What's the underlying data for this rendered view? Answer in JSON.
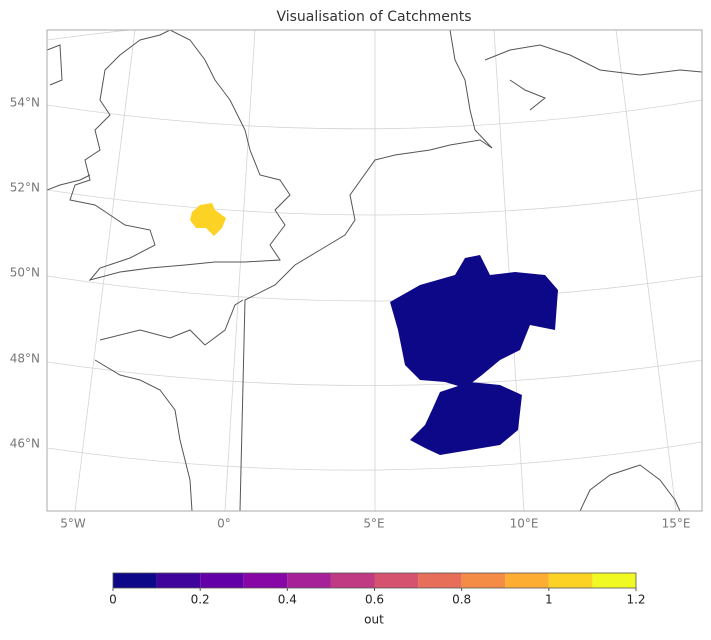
{
  "title": "Visualisation of Catchments",
  "lat_labels": [
    "54°N",
    "52°N",
    "50°N",
    "48°N",
    "46°N"
  ],
  "lon_labels": [
    "5°W",
    "0°",
    "5°E",
    "10°E",
    "15°E"
  ],
  "regions": [
    {
      "value": 1.05
    },
    {
      "value": 0.02
    }
  ],
  "colorbar": {
    "label": "out",
    "boundaries": [
      0,
      0.1,
      0.2,
      0.3,
      0.4,
      0.5,
      0.6,
      0.7,
      0.8,
      0.9,
      1,
      1.1,
      1.2
    ],
    "colors": [
      "#0d0887",
      "#3e049c",
      "#6300a7",
      "#8606a6",
      "#a62098",
      "#c03a83",
      "#d5536f",
      "#e76f5a",
      "#f58c46",
      "#fdad32",
      "#fcd225",
      "#f0f921"
    ],
    "ticks": [
      0,
      0.2,
      0.4,
      0.6,
      0.8,
      1,
      1.2
    ]
  }
}
